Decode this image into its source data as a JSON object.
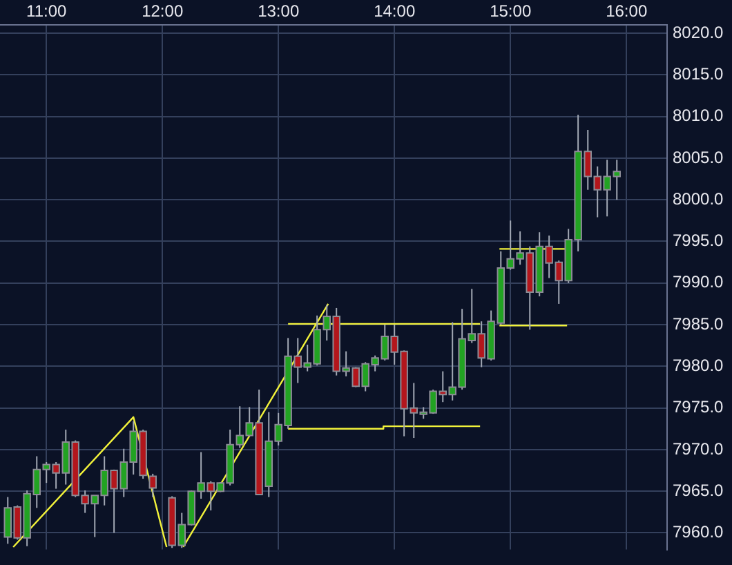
{
  "chart_data": {
    "type": "candlestick",
    "legend": false,
    "grid": true,
    "marker": "none",
    "line_style": "solid",
    "xlim": [
      10.6,
      16.35
    ],
    "ylim": [
      7958,
      8021
    ],
    "xticks": [
      {
        "value": 11,
        "label": "11:00"
      },
      {
        "value": 12,
        "label": "12:00"
      },
      {
        "value": 13,
        "label": "13:00"
      },
      {
        "value": 14,
        "label": "14:00"
      },
      {
        "value": 15,
        "label": "15:00"
      },
      {
        "value": 16,
        "label": "16:00"
      }
    ],
    "yticks": [
      {
        "value": 7960,
        "label": "7960.0"
      },
      {
        "value": 7965,
        "label": "7965.0"
      },
      {
        "value": 7970,
        "label": "7970.0"
      },
      {
        "value": 7975,
        "label": "7975.0"
      },
      {
        "value": 7980,
        "label": "7980.0"
      },
      {
        "value": 7985,
        "label": "7985.0"
      },
      {
        "value": 7990,
        "label": "7990.0"
      },
      {
        "value": 7995,
        "label": "7995.0"
      },
      {
        "value": 8000,
        "label": "8000.0"
      },
      {
        "value": 8005,
        "label": "8005.0"
      },
      {
        "value": 8010,
        "label": "8010.0"
      },
      {
        "value": 8015,
        "label": "8015.0"
      },
      {
        "value": 8020,
        "label": "8020.0"
      }
    ],
    "x": [
      10.667,
      10.75,
      10.833,
      10.917,
      11.0,
      11.083,
      11.167,
      11.25,
      11.333,
      11.417,
      11.5,
      11.583,
      11.667,
      11.75,
      11.833,
      11.917,
      12.083,
      12.167,
      12.25,
      12.333,
      12.417,
      12.5,
      12.583,
      12.667,
      12.75,
      12.833,
      12.917,
      13.0,
      13.083,
      13.167,
      13.25,
      13.333,
      13.417,
      13.5,
      13.583,
      13.667,
      13.75,
      13.833,
      13.917,
      14.0,
      14.083,
      14.167,
      14.25,
      14.333,
      14.417,
      14.5,
      14.583,
      14.667,
      14.75,
      14.833,
      14.917,
      15.0,
      15.083,
      15.167,
      15.25,
      15.333,
      15.417,
      15.5,
      15.583,
      15.667,
      15.75,
      15.833,
      15.917
    ],
    "ohlc": [
      [
        7959.5,
        7964.3,
        7958.7,
        7963.0
      ],
      [
        7963.1,
        7963.3,
        7959.2,
        7959.4
      ],
      [
        7959.4,
        7965.1,
        7958.4,
        7964.7
      ],
      [
        7964.6,
        7969.2,
        7963.0,
        7967.6
      ],
      [
        7967.6,
        7968.5,
        7966.0,
        7968.2
      ],
      [
        7968.2,
        7968.5,
        7965.3,
        7967.2
      ],
      [
        7967.2,
        7972.4,
        7965.8,
        7970.9
      ],
      [
        7970.9,
        7971.1,
        7964.3,
        7964.5
      ],
      [
        7964.5,
        7965.1,
        7962.4,
        7963.5
      ],
      [
        7963.5,
        7964.5,
        7959.5,
        7964.5
      ],
      [
        7964.5,
        7969.2,
        7963.3,
        7967.5
      ],
      [
        7967.5,
        7967.6,
        7960.0,
        7965.3
      ],
      [
        7965.3,
        7970.1,
        7964.3,
        7968.5
      ],
      [
        7968.5,
        7973.4,
        7967.0,
        7972.2
      ],
      [
        7972.2,
        7972.4,
        7966.5,
        7966.9
      ],
      [
        7966.8,
        7967.1,
        7964.3,
        7965.4
      ],
      [
        7964.2,
        7964.4,
        7958.2,
        7958.5
      ],
      [
        7958.5,
        7962.4,
        7958.2,
        7961.0
      ],
      [
        7961.0,
        7965.1,
        7960.9,
        7965.0
      ],
      [
        7965.0,
        7969.7,
        7964.1,
        7966.0
      ],
      [
        7966.0,
        7966.2,
        7962.7,
        7965.0
      ],
      [
        7965.0,
        7966.1,
        7964.9,
        7966.0
      ],
      [
        7966.0,
        7972.4,
        7965.7,
        7970.6
      ],
      [
        7970.6,
        7975.2,
        7970.2,
        7971.7
      ],
      [
        7971.7,
        7975.1,
        7971.6,
        7973.2
      ],
      [
        7973.2,
        7977.2,
        7964.6,
        7964.6
      ],
      [
        7965.6,
        7974.5,
        7964.3,
        7971.0
      ],
      [
        7971.0,
        7974.4,
        7970.5,
        7973.0
      ],
      [
        7972.9,
        7983.4,
        7972.5,
        7981.2
      ],
      [
        7981.2,
        7983.4,
        7978.0,
        7979.9
      ],
      [
        7979.9,
        7982.6,
        7979.4,
        7980.4
      ],
      [
        7980.3,
        7986.1,
        7980.1,
        7984.4
      ],
      [
        7984.4,
        7987.4,
        7983.1,
        7986.0
      ],
      [
        7986.0,
        7987.0,
        7978.9,
        7979.4
      ],
      [
        7979.4,
        7981.8,
        7978.8,
        7979.8
      ],
      [
        7979.8,
        7979.9,
        7977.5,
        7977.6
      ],
      [
        7977.6,
        7980.5,
        7977.0,
        7980.3
      ],
      [
        7980.2,
        7981.3,
        7979.4,
        7981.0
      ],
      [
        7980.9,
        7985.0,
        7980.7,
        7983.6
      ],
      [
        7983.6,
        7985.0,
        7980.2,
        7981.7
      ],
      [
        7981.8,
        7981.9,
        7971.6,
        7974.9
      ],
      [
        7975.0,
        7978.0,
        7971.4,
        7974.4
      ],
      [
        7974.4,
        7975.1,
        7973.7,
        7974.5
      ],
      [
        7974.4,
        7977.2,
        7974.3,
        7977.0
      ],
      [
        7977.0,
        7979.4,
        7975.7,
        7976.6
      ],
      [
        7976.6,
        7985.3,
        7975.9,
        7977.5
      ],
      [
        7977.5,
        7986.9,
        7977.2,
        7983.3
      ],
      [
        7983.1,
        7989.3,
        7982.8,
        7983.9
      ],
      [
        7983.9,
        7985.4,
        7979.9,
        7981.0
      ],
      [
        7980.9,
        7986.7,
        7980.7,
        7985.4
      ],
      [
        7985.2,
        7993.8,
        7985.0,
        7991.8
      ],
      [
        7991.8,
        7997.5,
        7991.6,
        7992.9
      ],
      [
        7992.9,
        7996.2,
        7992.2,
        7993.6
      ],
      [
        7993.6,
        7994.4,
        7984.4,
        7988.9
      ],
      [
        7988.9,
        7996.1,
        7988.4,
        7994.4
      ],
      [
        7994.4,
        7995.7,
        7990.6,
        7992.4
      ],
      [
        7992.5,
        7992.7,
        7987.5,
        7990.3
      ],
      [
        7990.3,
        7996.5,
        7990.0,
        7995.2
      ],
      [
        7995.2,
        8010.2,
        7993.8,
        8005.8
      ],
      [
        8005.8,
        8008.4,
        8001.2,
        8002.8
      ],
      [
        8002.8,
        8004.0,
        7997.9,
        8001.2
      ],
      [
        8001.2,
        8004.8,
        7998.0,
        8002.8
      ],
      [
        8002.8,
        8004.8,
        8000.0,
        8003.4
      ]
    ],
    "colors": [
      "#22a322",
      "#b3161c",
      "#22a322",
      "#22a322",
      "#22a322",
      "#b3161c",
      "#22a322",
      "#b3161c",
      "#b3161c",
      "#22a322",
      "#22a322",
      "#b3161c",
      "#22a322",
      "#22a322",
      "#b3161c",
      "#b3161c",
      "#b3161c",
      "#22a322",
      "#22a322",
      "#22a322",
      "#b3161c",
      "#22a322",
      "#22a322",
      "#22a322",
      "#22a322",
      "#b3161c",
      "#22a322",
      "#22a322",
      "#22a322",
      "#b3161c",
      "#22a322",
      "#22a322",
      "#22a322",
      "#b3161c",
      "#22a322",
      "#b3161c",
      "#22a322",
      "#22a322",
      "#22a322",
      "#b3161c",
      "#b3161c",
      "#b3161c",
      "#22a322",
      "#22a322",
      "#b3161c",
      "#22a322",
      "#22a322",
      "#22a322",
      "#b3161c",
      "#22a322",
      "#22a322",
      "#22a322",
      "#22a322",
      "#b3161c",
      "#22a322",
      "#b3161c",
      "#b3161c",
      "#22a322",
      "#22a322",
      "#b3161c",
      "#b3161c",
      "#22a322",
      "#22a322"
    ],
    "series": [
      {
        "type": "line",
        "color": "#f2f23a",
        "x": [
          10.714,
          11.75,
          12.036
        ],
        "values": [
          7958.3,
          7973.9,
          7958.3
        ]
      },
      {
        "type": "line",
        "color": "#f2f23a",
        "x": [
          12.179,
          13.429
        ],
        "values": [
          7958.3,
          7987.5
        ]
      },
      {
        "type": "line",
        "color": "#f2f23a",
        "x": [
          13.083,
          14.738
        ],
        "values": [
          7985.1,
          7985.1
        ]
      },
      {
        "type": "line",
        "color": "#f2f23a",
        "x": [
          13.083,
          13.905,
          13.905,
          14.738
        ],
        "values": [
          7972.5,
          7972.5,
          7972.8,
          7972.8
        ]
      },
      {
        "type": "line",
        "color": "#f2f23a",
        "x": [
          14.905,
          15.488
        ],
        "values": [
          7984.9,
          7984.9
        ]
      },
      {
        "type": "line",
        "color": "#f2f23a",
        "x": [
          14.905,
          15.5
        ],
        "values": [
          7994.1,
          7994.1
        ]
      }
    ]
  }
}
